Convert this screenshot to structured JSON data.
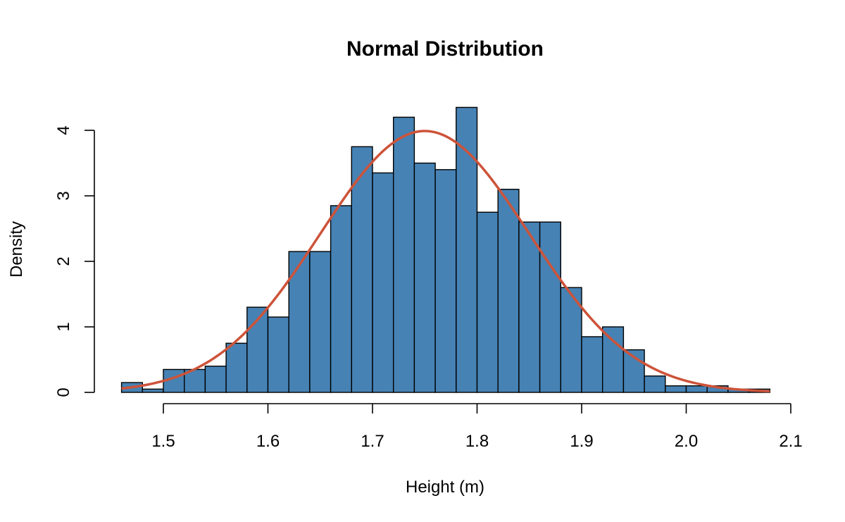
{
  "chart_data": {
    "type": "bar",
    "title": "Normal Distribution",
    "xlabel": "Height (m)",
    "ylabel": "Density",
    "xlim": [
      1.46,
      2.1
    ],
    "ylim": [
      0,
      4.4
    ],
    "x_ticks": [
      "1.5",
      "1.6",
      "1.7",
      "1.8",
      "1.9",
      "2.0",
      "2.1"
    ],
    "x_tick_values": [
      1.5,
      1.6,
      1.7,
      1.8,
      1.9,
      2.0,
      2.1
    ],
    "y_ticks": [
      "0",
      "1",
      "2",
      "3",
      "4"
    ],
    "y_tick_values": [
      0,
      1,
      2,
      3,
      4
    ],
    "bin_width": 0.02,
    "bins": [
      {
        "start": 1.46,
        "end": 1.48,
        "density": 0.15
      },
      {
        "start": 1.48,
        "end": 1.5,
        "density": 0.05
      },
      {
        "start": 1.5,
        "end": 1.52,
        "density": 0.35
      },
      {
        "start": 1.52,
        "end": 1.54,
        "density": 0.35
      },
      {
        "start": 1.54,
        "end": 1.56,
        "density": 0.4
      },
      {
        "start": 1.56,
        "end": 1.58,
        "density": 0.75
      },
      {
        "start": 1.58,
        "end": 1.6,
        "density": 1.3
      },
      {
        "start": 1.6,
        "end": 1.62,
        "density": 1.15
      },
      {
        "start": 1.62,
        "end": 1.64,
        "density": 2.15
      },
      {
        "start": 1.64,
        "end": 1.66,
        "density": 2.15
      },
      {
        "start": 1.66,
        "end": 1.68,
        "density": 2.85
      },
      {
        "start": 1.68,
        "end": 1.7,
        "density": 3.75
      },
      {
        "start": 1.7,
        "end": 1.72,
        "density": 3.35
      },
      {
        "start": 1.72,
        "end": 1.74,
        "density": 4.2
      },
      {
        "start": 1.74,
        "end": 1.76,
        "density": 3.5
      },
      {
        "start": 1.76,
        "end": 1.78,
        "density": 3.4
      },
      {
        "start": 1.78,
        "end": 1.8,
        "density": 4.35
      },
      {
        "start": 1.8,
        "end": 1.82,
        "density": 2.75
      },
      {
        "start": 1.82,
        "end": 1.84,
        "density": 3.1
      },
      {
        "start": 1.84,
        "end": 1.86,
        "density": 2.6
      },
      {
        "start": 1.86,
        "end": 1.88,
        "density": 2.6
      },
      {
        "start": 1.88,
        "end": 1.9,
        "density": 1.6
      },
      {
        "start": 1.9,
        "end": 1.92,
        "density": 0.85
      },
      {
        "start": 1.92,
        "end": 1.94,
        "density": 1.0
      },
      {
        "start": 1.94,
        "end": 1.96,
        "density": 0.65
      },
      {
        "start": 1.96,
        "end": 1.98,
        "density": 0.25
      },
      {
        "start": 1.98,
        "end": 2.0,
        "density": 0.1
      },
      {
        "start": 2.0,
        "end": 2.02,
        "density": 0.1
      },
      {
        "start": 2.02,
        "end": 2.04,
        "density": 0.1
      },
      {
        "start": 2.04,
        "end": 2.06,
        "density": 0.05
      },
      {
        "start": 2.06,
        "end": 2.08,
        "density": 0.05
      }
    ],
    "curve": {
      "type": "normal-density",
      "mean": 1.75,
      "sd": 0.1,
      "x_range": [
        1.46,
        2.08
      ]
    },
    "grid": false,
    "legend": "none",
    "colors": {
      "bar_fill": "#4682b4",
      "bar_stroke": "#000000",
      "curve": "#cd5339"
    }
  }
}
